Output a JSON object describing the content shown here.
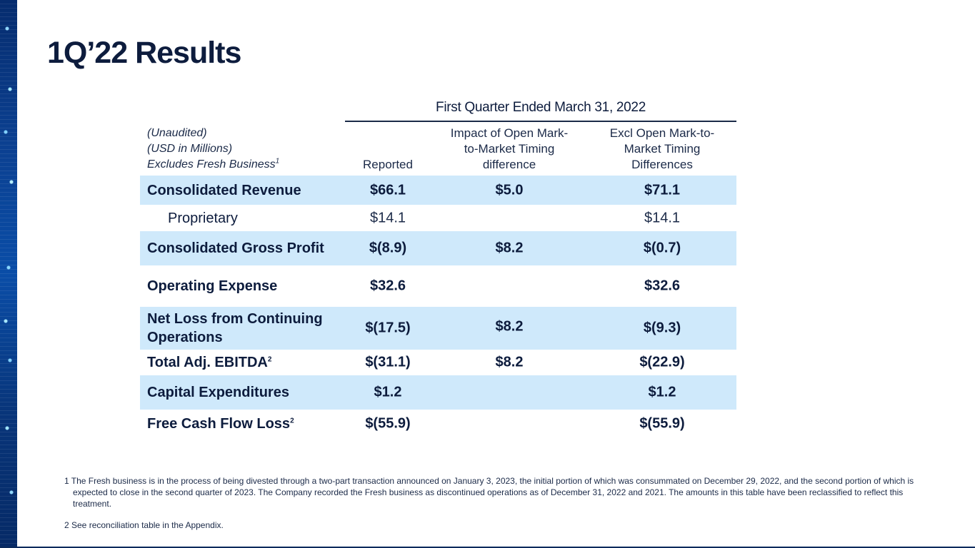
{
  "title": "1Q’22 Results",
  "table": {
    "group_header": "First Quarter Ended March 31, 2022",
    "left_header": {
      "line1": "(Unaudited)",
      "line2": "(USD in Millions)",
      "line3": "Excludes Fresh Business",
      "line3_sup": "1"
    },
    "columns": {
      "reported": "Reported",
      "impact_line1": "Impact of Open Mark-",
      "impact_line2": "to-Market Timing",
      "impact_line3": "difference",
      "excl_line1": "Excl Open Mark-to-",
      "excl_line2": "Market Timing",
      "excl_line3": "Differences"
    },
    "rows": [
      {
        "label": "Consolidated  Revenue",
        "reported": "$66.1",
        "impact": "$5.0",
        "excl": "$71.1"
      },
      {
        "label": "Proprietary",
        "reported": "$14.1",
        "impact": "",
        "excl": "$14.1"
      },
      {
        "label": "Consolidated Gross Profit",
        "reported": "$(8.9)",
        "impact": "$8.2",
        "excl": "$(0.7)"
      },
      {
        "label": "Operating Expense",
        "reported": "$32.6",
        "impact": "",
        "excl": "$32.6"
      },
      {
        "label_line1": "Net Loss from Continuing",
        "label_line2": "Operations",
        "reported": "$(17.5)",
        "impact": "$8.2",
        "excl": "$(9.3)"
      },
      {
        "label": "Total Adj. EBITDA",
        "label_sup": "2",
        "reported": "$(31.1)",
        "impact": "$8.2",
        "excl": "$(22.9)"
      },
      {
        "label": "Capital Expenditures",
        "reported": "$1.2",
        "impact": "",
        "excl": "$1.2"
      },
      {
        "label": "Free Cash Flow Loss",
        "label_sup": "2",
        "reported": "$(55.9)",
        "impact": "",
        "excl": "$(55.9)"
      }
    ]
  },
  "footnotes": {
    "fn1": "1 The Fresh business is in the process of being divested through a two-part transaction announced on January 3, 2023, the initial portion of which was consummated on December 29, 2022, and the second portion of which is expected to close in the second quarter of 2023. The Company recorded the Fresh business as discontinued operations as of December 31, 2022 and 2021. The amounts in this table have been reclassified to reflect this treatment.",
    "fn2": "2 See reconciliation table in the Appendix."
  },
  "colors": {
    "title": "#0d1c3d",
    "row_shade": "#cfe9fb",
    "strip": "#0b3f8f"
  }
}
